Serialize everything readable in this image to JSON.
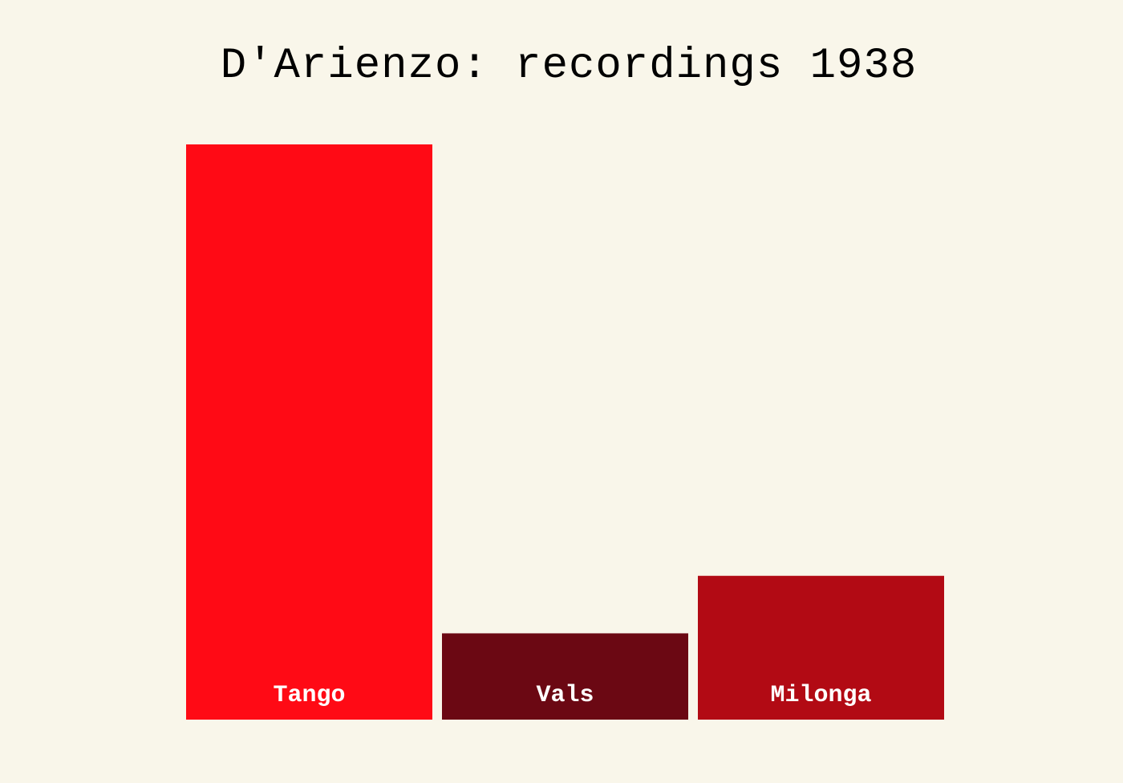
{
  "chart_data": {
    "type": "bar",
    "title": "D'Arienzo: recordings 1938",
    "categories": [
      "Tango",
      "Vals",
      "Milonga"
    ],
    "values": [
      60,
      9,
      15
    ],
    "colors": [
      "#ff0a15",
      "#6b0813",
      "#b20a14"
    ],
    "ylim": [
      0,
      60
    ],
    "grid": false,
    "legend": "none",
    "xlabel": "",
    "ylabel": ""
  }
}
